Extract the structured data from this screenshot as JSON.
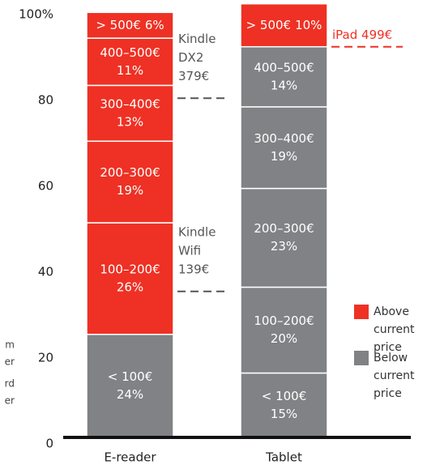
{
  "chart_data": {
    "type": "stacked_bar",
    "categories": [
      "E-reader",
      "Tablet"
    ],
    "series": [
      {
        "name": "< 100€",
        "colors": [
          "#808285",
          "#808285"
        ],
        "values": [
          24,
          15
        ],
        "value_labels": [
          "24%",
          "15%"
        ]
      },
      {
        "name": "100–200€",
        "colors": [
          "#ee3124",
          "#808285"
        ],
        "values": [
          26,
          20
        ],
        "value_labels": [
          "26%",
          "20%"
        ]
      },
      {
        "name": "200–300€",
        "colors": [
          "#ee3124",
          "#808285"
        ],
        "values": [
          19,
          23
        ],
        "value_labels": [
          "19%",
          "23%"
        ]
      },
      {
        "name": "300–400€",
        "colors": [
          "#ee3124",
          "#808285"
        ],
        "values": [
          13,
          19
        ],
        "value_labels": [
          "13%",
          "19%"
        ]
      },
      {
        "name": "400–500€",
        "colors": [
          "#ee3124",
          "#808285"
        ],
        "values": [
          11,
          14
        ],
        "value_labels": [
          "11%",
          "14%"
        ]
      },
      {
        "name": "> 500€",
        "colors": [
          "#ee3124",
          "#ee3124"
        ],
        "values": [
          6,
          10
        ],
        "value_labels": [
          "6%",
          "10%"
        ]
      }
    ],
    "ylim": [
      0,
      100
    ],
    "yticks": [
      0,
      20,
      40,
      60,
      80,
      {
        "value": 100,
        "label": "100%"
      }
    ],
    "annotations": [
      {
        "lines": [
          "Kindle",
          "DX2",
          "379€"
        ],
        "value": 79,
        "bar": 0,
        "color": "#555555"
      },
      {
        "lines": [
          "Kindle",
          "Wifi",
          "139€"
        ],
        "value": 34,
        "bar": 0,
        "color": "#555555"
      },
      {
        "lines": [
          "iPad 499€"
        ],
        "value": 91,
        "bar": 1,
        "color": "#ee3124"
      }
    ],
    "legend": [
      {
        "lines": [
          "Above",
          "current",
          "price"
        ],
        "color": "#ee3124"
      },
      {
        "lines": [
          "Below",
          "current",
          "price"
        ],
        "color": "#808285"
      }
    ],
    "side_note": [
      "m",
      "er",
      "rd",
      "er"
    ]
  }
}
